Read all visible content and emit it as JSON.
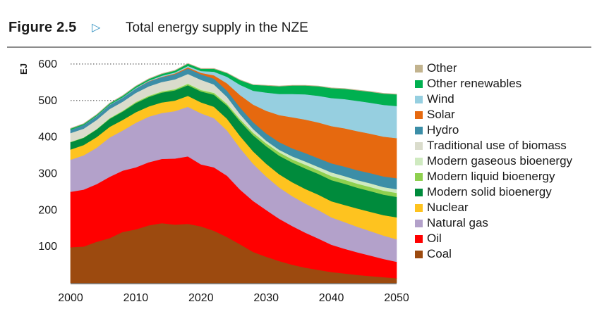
{
  "figure": {
    "number": "Figure 2.5",
    "title": "Total energy supply in the NZE"
  },
  "chart_data": {
    "type": "area",
    "stacked": true,
    "title": "Total energy supply in the NZE",
    "ylabel": "EJ",
    "xlabel": "",
    "xlim": [
      2000,
      2050
    ],
    "ylim": [
      0,
      600
    ],
    "x_ticks": [
      2000,
      2010,
      2020,
      2030,
      2040,
      2050
    ],
    "y_ticks": [
      100,
      200,
      300,
      400,
      500,
      600
    ],
    "gridlines": "dotted at 500 and 600, left of the stack only",
    "legend_position": "right",
    "x": [
      2000,
      2002,
      2004,
      2006,
      2008,
      2010,
      2012,
      2014,
      2016,
      2018,
      2020,
      2022,
      2024,
      2026,
      2028,
      2030,
      2032,
      2034,
      2036,
      2038,
      2040,
      2042,
      2044,
      2046,
      2048,
      2050
    ],
    "series": [
      {
        "name": "Coal",
        "color": "#9c4a0f",
        "values": [
          98,
          100,
          113,
          123,
          140,
          147,
          158,
          164,
          160,
          162,
          155,
          143,
          126,
          106,
          85,
          72,
          60,
          50,
          42,
          36,
          30,
          26,
          22,
          19,
          16,
          13
        ]
      },
      {
        "name": "Oil",
        "color": "#ff0000",
        "values": [
          152,
          156,
          158,
          168,
          168,
          170,
          173,
          176,
          181,
          185,
          170,
          174,
          168,
          150,
          140,
          128,
          116,
          106,
          96,
          86,
          75,
          68,
          62,
          56,
          50,
          45
        ]
      },
      {
        "name": "Natural gas",
        "color": "#b3a1ca",
        "values": [
          88,
          94,
          100,
          108,
          110,
          122,
          125,
          126,
          130,
          136,
          140,
          135,
          124,
          114,
          102,
          92,
          86,
          82,
          80,
          78,
          75,
          73,
          70,
          67,
          64,
          62
        ]
      },
      {
        "name": "Nuclear",
        "color": "#fec31f",
        "values": [
          28,
          28,
          29,
          29,
          29,
          29,
          28,
          29,
          29,
          30,
          30,
          31,
          32,
          33,
          34,
          35,
          36,
          38,
          40,
          42,
          44,
          47,
          50,
          53,
          56,
          60
        ]
      },
      {
        "name": "Modern solid bioenergy",
        "color": "#008b3c",
        "values": [
          20,
          20,
          21,
          22,
          23,
          25,
          26,
          27,
          28,
          29,
          30,
          33,
          36,
          40,
          44,
          48,
          51,
          54,
          56,
          57,
          58,
          58,
          57,
          57,
          56,
          56
        ]
      },
      {
        "name": "Modern liquid bioenergy",
        "color": "#8fd04f",
        "values": [
          1,
          1,
          1,
          2,
          2,
          3,
          3,
          3,
          3,
          4,
          4,
          5,
          5,
          6,
          7,
          8,
          9,
          9,
          10,
          10,
          11,
          11,
          11,
          11,
          11,
          11
        ]
      },
      {
        "name": "Modern gaseous bioenergy",
        "color": "#cfeac0",
        "values": [
          1,
          1,
          1,
          1,
          1,
          1,
          2,
          2,
          2,
          2,
          3,
          3,
          4,
          4,
          5,
          6,
          7,
          8,
          9,
          9,
          10,
          10,
          10,
          10,
          10,
          10
        ]
      },
      {
        "name": "Traditional use of biomass",
        "color": "#dadccc",
        "values": [
          23,
          23,
          24,
          24,
          24,
          24,
          24,
          24,
          25,
          25,
          25,
          20,
          15,
          10,
          5,
          1,
          0,
          0,
          0,
          0,
          0,
          0,
          0,
          0,
          0,
          0
        ]
      },
      {
        "name": "Hydro",
        "color": "#3c8ea7",
        "values": [
          9,
          10,
          10,
          11,
          11,
          12,
          13,
          13,
          14,
          15,
          15,
          16,
          17,
          18,
          19,
          20,
          21,
          22,
          23,
          24,
          25,
          26,
          27,
          28,
          29,
          30
        ]
      },
      {
        "name": "Solar",
        "color": "#e6690f",
        "values": [
          0,
          0,
          0,
          0,
          0,
          0,
          1,
          1,
          2,
          3,
          4,
          9,
          20,
          34,
          48,
          62,
          74,
          85,
          92,
          98,
          102,
          105,
          107,
          108,
          109,
          110
        ]
      },
      {
        "name": "Wind",
        "color": "#96cfe0",
        "values": [
          0,
          0,
          1,
          1,
          1,
          2,
          2,
          3,
          3,
          4,
          5,
          10,
          18,
          28,
          38,
          50,
          58,
          64,
          69,
          73,
          77,
          80,
          83,
          85,
          87,
          88
        ]
      },
      {
        "name": "Other renewables",
        "color": "#00b050",
        "values": [
          3,
          3,
          3,
          3,
          4,
          4,
          4,
          5,
          5,
          6,
          6,
          8,
          10,
          13,
          16,
          19,
          21,
          23,
          24,
          26,
          27,
          28,
          29,
          30,
          31,
          32
        ]
      },
      {
        "name": "Other",
        "color": "#c2b38e",
        "values": [
          1,
          1,
          1,
          1,
          1,
          1,
          1,
          1,
          1,
          1,
          1,
          1,
          1,
          1,
          1,
          1,
          1,
          1,
          1,
          1,
          1,
          1,
          1,
          1,
          1,
          1
        ]
      }
    ]
  },
  "legend": [
    {
      "label": "Other",
      "color": "#c2b38e"
    },
    {
      "label": "Other renewables",
      "color": "#00b050"
    },
    {
      "label": "Wind",
      "color": "#96cfe0"
    },
    {
      "label": "Solar",
      "color": "#e6690f"
    },
    {
      "label": "Hydro",
      "color": "#3c8ea7"
    },
    {
      "label": "Traditional use of biomass",
      "color": "#dadccc"
    },
    {
      "label": "Modern gaseous bioenergy",
      "color": "#cfeac0"
    },
    {
      "label": "Modern liquid bioenergy",
      "color": "#8fd04f"
    },
    {
      "label": "Modern solid bioenergy",
      "color": "#008b3c"
    },
    {
      "label": "Nuclear",
      "color": "#fec31f"
    },
    {
      "label": "Natural gas",
      "color": "#b3a1ca"
    },
    {
      "label": "Oil",
      "color": "#ff0000"
    },
    {
      "label": "Coal",
      "color": "#9c4a0f"
    }
  ]
}
